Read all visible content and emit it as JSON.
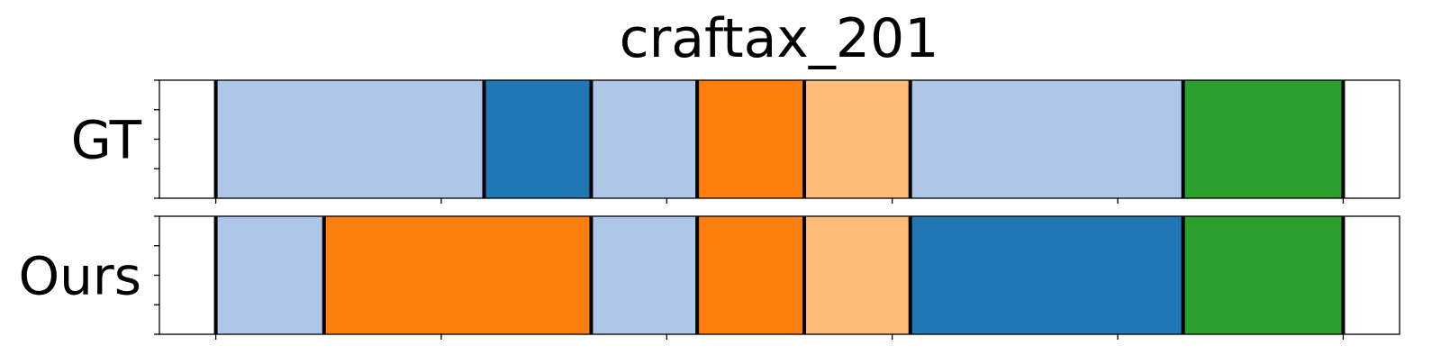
{
  "chart_data": {
    "type": "segmentation-timeline",
    "title": "craftax_201",
    "x_range": [
      -5,
      105
    ],
    "tick_positions": [
      0,
      20,
      40,
      60,
      80,
      100
    ],
    "tick_labels_shown": false,
    "y_ticks_per_row": 5,
    "y_tick_labels_shown": false,
    "colors": {
      "light_blue": "#aec7e8",
      "blue": "#1f77b4",
      "orange": "#ff7f0e",
      "light_orange": "#ffbb78",
      "green": "#2ca02c",
      "boundary": "#000000"
    },
    "rows": [
      {
        "label": "GT",
        "segments": [
          {
            "start": 0,
            "end": 23.8,
            "color": "light_blue"
          },
          {
            "start": 23.8,
            "end": 33.3,
            "color": "blue"
          },
          {
            "start": 33.3,
            "end": 42.7,
            "color": "light_blue"
          },
          {
            "start": 42.7,
            "end": 52.2,
            "color": "orange"
          },
          {
            "start": 52.2,
            "end": 61.6,
            "color": "light_orange"
          },
          {
            "start": 61.6,
            "end": 85.8,
            "color": "light_blue"
          },
          {
            "start": 85.8,
            "end": 100,
            "color": "green"
          }
        ]
      },
      {
        "label": "Ours",
        "segments": [
          {
            "start": 0,
            "end": 9.6,
            "color": "light_blue"
          },
          {
            "start": 9.6,
            "end": 33.3,
            "color": "orange"
          },
          {
            "start": 33.3,
            "end": 42.7,
            "color": "light_blue"
          },
          {
            "start": 42.7,
            "end": 52.2,
            "color": "orange"
          },
          {
            "start": 52.2,
            "end": 61.6,
            "color": "light_orange"
          },
          {
            "start": 61.6,
            "end": 85.8,
            "color": "blue"
          },
          {
            "start": 85.8,
            "end": 100,
            "color": "green"
          }
        ]
      }
    ]
  }
}
